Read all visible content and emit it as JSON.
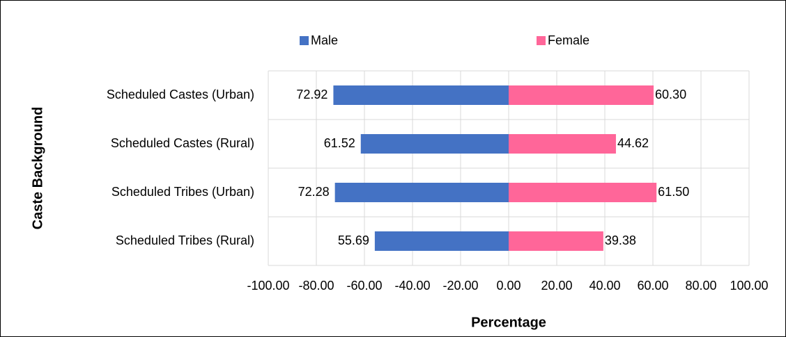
{
  "chart_data": {
    "type": "bar",
    "orientation": "horizontal",
    "x_label": "Percentage",
    "y_label": "Caste Background",
    "categories": [
      "Scheduled Castes (Urban)",
      "Scheduled Castes (Rural)",
      "Scheduled Tribes (Urban)",
      "Scheduled Tribes (Rural)"
    ],
    "series": [
      {
        "name": "Male",
        "color": "#4472c4",
        "values": [
          -72.92,
          -61.52,
          -72.28,
          -55.69
        ],
        "value_labels": [
          "72.92",
          "61.52",
          "72.28",
          "55.69"
        ]
      },
      {
        "name": "Female",
        "color": "#ff6699",
        "values": [
          60.3,
          44.62,
          61.5,
          39.38
        ],
        "value_labels": [
          "60.30",
          "44.62",
          "61.50",
          "39.38"
        ]
      }
    ],
    "xlim": [
      -100,
      100
    ],
    "xticks": [
      {
        "value": -100,
        "label": "-100.00"
      },
      {
        "value": -80,
        "label": "-80.00"
      },
      {
        "value": -60,
        "label": "-60.00"
      },
      {
        "value": -40,
        "label": "-40.00"
      },
      {
        "value": -20,
        "label": "-20.00"
      },
      {
        "value": 0,
        "label": "0.00"
      },
      {
        "value": 20,
        "label": "20.00"
      },
      {
        "value": 40,
        "label": "40.00"
      },
      {
        "value": 60,
        "label": "60.00"
      },
      {
        "value": 80,
        "label": "80.00"
      },
      {
        "value": 100,
        "label": "100.00"
      }
    ],
    "grid": true,
    "legend": "top"
  }
}
